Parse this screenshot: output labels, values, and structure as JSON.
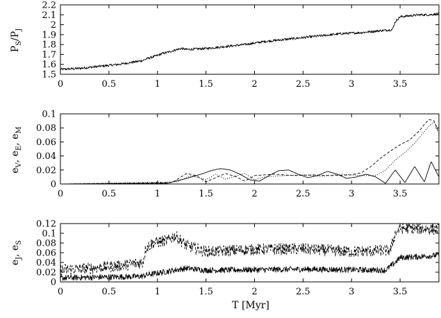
{
  "chart_data": [
    {
      "type": "line",
      "ylabel": {
        "main": "P",
        "sub1": "S",
        "sep": "/P",
        "sub2": "J"
      },
      "xlabel": "",
      "xlim": [
        0,
        3.9
      ],
      "ylim": [
        1.5,
        2.2
      ],
      "xticks": [
        "0",
        "0.5",
        "1",
        "1.5",
        "2",
        "2.5",
        "3",
        "3.5"
      ],
      "xtick_values": [
        0,
        0.5,
        1,
        1.5,
        2,
        2.5,
        3,
        3.5
      ],
      "yticks": [
        "1.5",
        "1.6",
        "1.7",
        "1.8",
        "1.9",
        "2",
        "2.1",
        "2.2"
      ],
      "ytick_values": [
        1.5,
        1.6,
        1.7,
        1.8,
        1.9,
        2.0,
        2.1,
        2.2
      ],
      "series": [
        {
          "style": "solid",
          "noise": 0.012,
          "x": [
            0,
            0.2,
            0.4,
            0.6,
            0.8,
            0.85,
            0.9,
            1.0,
            1.05,
            1.1,
            1.2,
            1.25,
            1.3,
            1.5,
            1.7,
            1.9,
            2.1,
            2.3,
            2.5,
            2.7,
            2.9,
            3.1,
            3.3,
            3.42,
            3.45,
            3.5,
            3.6,
            3.7,
            3.8,
            3.9
          ],
          "y": [
            1.55,
            1.56,
            1.58,
            1.6,
            1.63,
            1.64,
            1.66,
            1.69,
            1.71,
            1.72,
            1.75,
            1.76,
            1.75,
            1.76,
            1.78,
            1.8,
            1.83,
            1.85,
            1.87,
            1.89,
            1.91,
            1.92,
            1.94,
            1.95,
            2.03,
            2.08,
            2.09,
            2.1,
            2.1,
            2.11
          ]
        }
      ]
    },
    {
      "type": "line",
      "ylabel": {
        "main": "e",
        "sub1": "V",
        "sep": ", e",
        "sub2": "E",
        "sep2": ", e",
        "sub3": "M"
      },
      "xlabel": "",
      "xlim": [
        0,
        3.9
      ],
      "ylim": [
        0,
        0.1
      ],
      "xticks": [
        "0",
        "0.5",
        "1",
        "1.5",
        "2",
        "2.5",
        "3",
        "3.5"
      ],
      "xtick_values": [
        0,
        0.5,
        1,
        1.5,
        2,
        2.5,
        3,
        3.5
      ],
      "yticks": [
        "0",
        "0.02",
        "0.04",
        "0.06",
        "0.08",
        "0.1"
      ],
      "ytick_values": [
        0,
        0.02,
        0.04,
        0.06,
        0.08,
        0.1
      ],
      "series": [
        {
          "style": "solid",
          "x": [
            0,
            1.1,
            1.3,
            1.45,
            1.55,
            1.65,
            1.75,
            1.85,
            1.95,
            2.05,
            2.15,
            2.25,
            2.35,
            2.45,
            2.55,
            2.65,
            2.75,
            2.85,
            2.95,
            3.05,
            3.15,
            3.25,
            3.35,
            3.45,
            3.55,
            3.65,
            3.75,
            3.82,
            3.9
          ],
          "y": [
            0,
            0.001,
            0.008,
            0.014,
            0.019,
            0.022,
            0.02,
            0.014,
            0.006,
            0.004,
            0.012,
            0.019,
            0.02,
            0.014,
            0.009,
            0.012,
            0.018,
            0.014,
            0.008,
            0.01,
            0.014,
            0.01,
            0.001,
            0.02,
            0.002,
            0.025,
            0.003,
            0.032,
            0.01
          ]
        },
        {
          "style": "dashed",
          "x": [
            0,
            1.15,
            1.3,
            1.4,
            1.5,
            1.6,
            1.7,
            1.8,
            1.9,
            2.0,
            2.2,
            2.4,
            2.6,
            2.8,
            3.0,
            3.1,
            3.2,
            3.3,
            3.4,
            3.5,
            3.6,
            3.7,
            3.75,
            3.8,
            3.85,
            3.9
          ],
          "y": [
            0,
            0.002,
            0.015,
            0.012,
            0.003,
            0.009,
            0.015,
            0.011,
            0.004,
            0.012,
            0.014,
            0.012,
            0.013,
            0.012,
            0.013,
            0.016,
            0.025,
            0.037,
            0.047,
            0.056,
            0.063,
            0.076,
            0.085,
            0.092,
            0.09,
            0.072
          ]
        },
        {
          "style": "dotted",
          "x": [
            0,
            1.2,
            1.35,
            1.5,
            1.6,
            1.7,
            1.8,
            1.9,
            2.0,
            2.1,
            2.3,
            2.5,
            2.7,
            2.9,
            3.1,
            3.25,
            3.35,
            3.45,
            3.55,
            3.65,
            3.72,
            3.8,
            3.85,
            3.9
          ],
          "y": [
            0,
            0.003,
            0.012,
            0.006,
            0.014,
            0.007,
            0.011,
            0.015,
            0.006,
            0.01,
            0.012,
            0.013,
            0.011,
            0.014,
            0.012,
            0.012,
            0.02,
            0.034,
            0.045,
            0.058,
            0.07,
            0.083,
            0.088,
            0.078
          ]
        }
      ]
    },
    {
      "type": "line",
      "ylabel": {
        "main": "e",
        "sub1": "J",
        "sep": ", e",
        "sub2": "S"
      },
      "xlabel": "T [Myr]",
      "xlim": [
        0,
        3.9
      ],
      "ylim": [
        0,
        0.12
      ],
      "xticks": [
        "0",
        "0.5",
        "1",
        "1.5",
        "2",
        "2.5",
        "3",
        "3.5"
      ],
      "xtick_values": [
        0,
        0.5,
        1,
        1.5,
        2,
        2.5,
        3,
        3.5
      ],
      "yticks": [
        "0",
        "0.02",
        "0.04",
        "0.06",
        "0.08",
        "0.1",
        "0.12"
      ],
      "ytick_values": [
        0,
        0.02,
        0.04,
        0.06,
        0.08,
        0.1,
        0.12
      ],
      "series": [
        {
          "style": "solid",
          "noise": 0.006,
          "x": [
            0,
            0.2,
            0.5,
            0.8,
            0.85,
            0.9,
            1.0,
            1.2,
            1.3,
            1.5,
            2.0,
            2.5,
            3.0,
            3.35,
            3.45,
            3.5,
            3.7,
            3.9
          ],
          "y": [
            0.008,
            0.009,
            0.01,
            0.011,
            0.012,
            0.015,
            0.018,
            0.025,
            0.028,
            0.024,
            0.025,
            0.026,
            0.025,
            0.024,
            0.04,
            0.05,
            0.052,
            0.055
          ]
        },
        {
          "style": "dashed",
          "noise": 0.012,
          "x": [
            0,
            0.3,
            0.6,
            0.85,
            0.88,
            0.95,
            1.1,
            1.18,
            1.3,
            1.5,
            2.0,
            2.5,
            3.0,
            3.4,
            3.45,
            3.5,
            3.7,
            3.9
          ],
          "y": [
            0.025,
            0.028,
            0.033,
            0.04,
            0.07,
            0.08,
            0.085,
            0.095,
            0.075,
            0.062,
            0.067,
            0.068,
            0.062,
            0.065,
            0.1,
            0.11,
            0.11,
            0.108
          ]
        }
      ]
    }
  ]
}
